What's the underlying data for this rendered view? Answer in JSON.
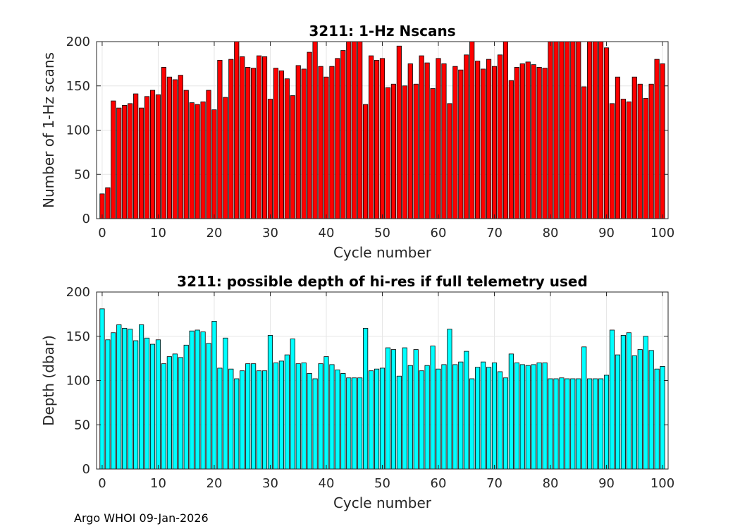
{
  "footer": "Argo WHOI 09-Jan-2026",
  "chart_data": [
    {
      "type": "bar",
      "title": "3211: 1-Hz Nscans",
      "xlabel": "Cycle number",
      "ylabel": "Number of 1-Hz scans",
      "xlim": [
        -1,
        101
      ],
      "ylim": [
        0,
        200
      ],
      "xticks": [
        0,
        10,
        20,
        30,
        40,
        50,
        60,
        70,
        80,
        90,
        100
      ],
      "yticks": [
        0,
        50,
        100,
        150,
        200
      ],
      "grid": true,
      "bar_color": "#ff0000",
      "x": [
        0,
        1,
        2,
        3,
        4,
        5,
        6,
        7,
        8,
        9,
        10,
        11,
        12,
        13,
        14,
        15,
        16,
        17,
        18,
        19,
        20,
        21,
        22,
        23,
        24,
        25,
        26,
        27,
        28,
        29,
        30,
        31,
        32,
        33,
        34,
        35,
        36,
        37,
        38,
        39,
        40,
        41,
        42,
        43,
        44,
        45,
        46,
        47,
        48,
        49,
        50,
        51,
        52,
        53,
        54,
        55,
        56,
        57,
        58,
        59,
        60,
        61,
        62,
        63,
        64,
        65,
        66,
        67,
        68,
        69,
        70,
        71,
        72,
        73,
        74,
        75,
        76,
        77,
        78,
        79,
        80,
        81,
        82,
        83,
        84,
        85,
        86,
        87,
        88,
        89,
        90,
        91,
        92,
        93,
        94,
        95,
        96,
        97,
        98,
        99,
        100
      ],
      "values": [
        28,
        35,
        133,
        125,
        128,
        130,
        141,
        125,
        138,
        145,
        140,
        171,
        160,
        157,
        162,
        145,
        131,
        129,
        132,
        145,
        123,
        179,
        137,
        180,
        205,
        183,
        171,
        170,
        184,
        183,
        135,
        170,
        167,
        158,
        139,
        173,
        169,
        188,
        201,
        172,
        160,
        172,
        181,
        190,
        203,
        211,
        202,
        129,
        184,
        179,
        181,
        148,
        152,
        195,
        150,
        175,
        152,
        184,
        176,
        147,
        181,
        175,
        130,
        172,
        168,
        185,
        200,
        178,
        169,
        180,
        172,
        185,
        210,
        156,
        171,
        175,
        177,
        174,
        171,
        170,
        210,
        210,
        210,
        210,
        210,
        210,
        149,
        210,
        210,
        210,
        193,
        130,
        160,
        135,
        132,
        160,
        152,
        136,
        152,
        180,
        175
      ]
    },
    {
      "type": "bar",
      "title": "3211: possible depth of hi-res if full telemetry used",
      "xlabel": "Cycle number",
      "ylabel": "Depth (dbar)",
      "xlim": [
        -1,
        101
      ],
      "ylim": [
        0,
        200
      ],
      "xticks": [
        0,
        10,
        20,
        30,
        40,
        50,
        60,
        70,
        80,
        90,
        100
      ],
      "yticks": [
        0,
        50,
        100,
        150,
        200
      ],
      "grid": true,
      "bar_color": "#00ffff",
      "x": [
        0,
        1,
        2,
        3,
        4,
        5,
        6,
        7,
        8,
        9,
        10,
        11,
        12,
        13,
        14,
        15,
        16,
        17,
        18,
        19,
        20,
        21,
        22,
        23,
        24,
        25,
        26,
        27,
        28,
        29,
        30,
        31,
        32,
        33,
        34,
        35,
        36,
        37,
        38,
        39,
        40,
        41,
        42,
        43,
        44,
        45,
        46,
        47,
        48,
        49,
        50,
        51,
        52,
        53,
        54,
        55,
        56,
        57,
        58,
        59,
        60,
        61,
        62,
        63,
        64,
        65,
        66,
        67,
        68,
        69,
        70,
        71,
        72,
        73,
        74,
        75,
        76,
        77,
        78,
        79,
        80,
        81,
        82,
        83,
        84,
        85,
        86,
        87,
        88,
        89,
        90,
        91,
        92,
        93,
        94,
        95,
        96,
        97,
        98,
        99,
        100
      ],
      "values": [
        181,
        146,
        154,
        163,
        159,
        158,
        145,
        163,
        148,
        141,
        146,
        119,
        127,
        130,
        126,
        140,
        156,
        157,
        155,
        142,
        167,
        114,
        148,
        113,
        102,
        111,
        119,
        119,
        111,
        111,
        151,
        120,
        122,
        129,
        147,
        119,
        120,
        108,
        102,
        119,
        127,
        118,
        112,
        108,
        103,
        103,
        103,
        159,
        111,
        113,
        114,
        137,
        135,
        105,
        137,
        117,
        135,
        111,
        117,
        139,
        113,
        118,
        158,
        118,
        121,
        133,
        102,
        115,
        121,
        115,
        120,
        110,
        103,
        130,
        120,
        118,
        117,
        118,
        120,
        120,
        102,
        102,
        103,
        102,
        102,
        102,
        138,
        102,
        102,
        102,
        106,
        157,
        129,
        151,
        154,
        128,
        135,
        150,
        134,
        113,
        116
      ]
    }
  ]
}
